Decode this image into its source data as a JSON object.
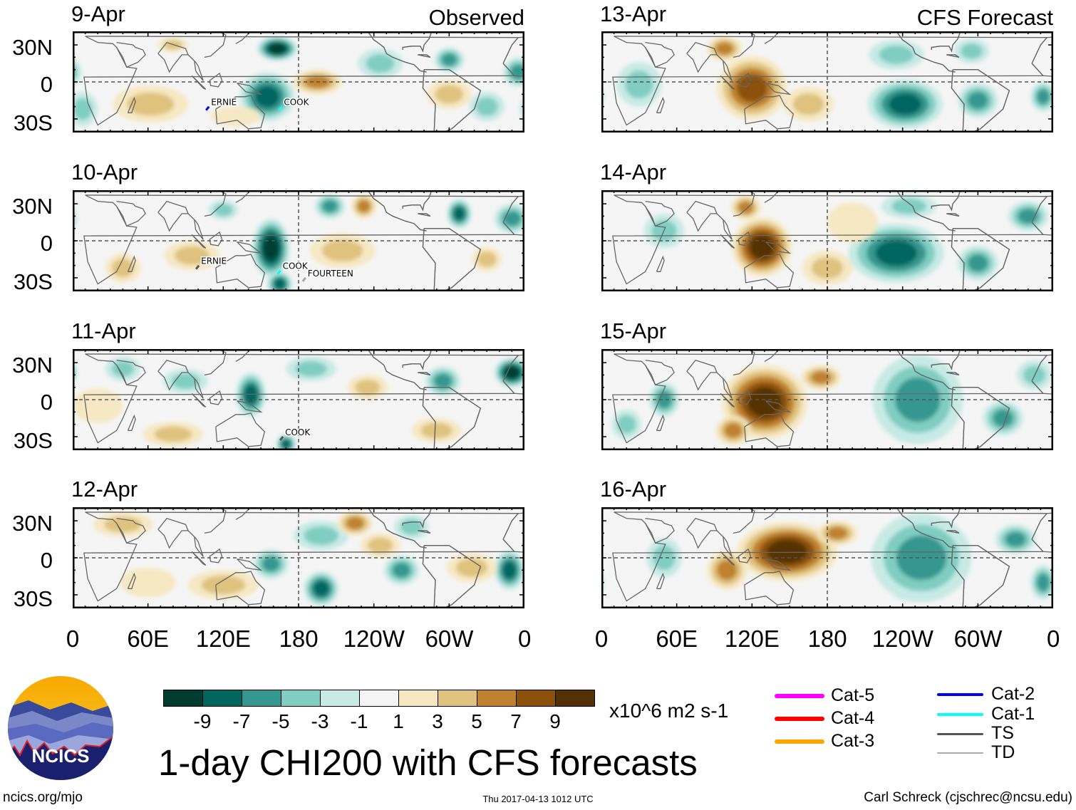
{
  "header": {
    "left_label": "Observed",
    "right_label": "CFS Forecast"
  },
  "y_ticks": [
    "30N",
    "0",
    "30S"
  ],
  "x_ticks": [
    "0",
    "60E",
    "120E",
    "180",
    "120W",
    "60W",
    "0"
  ],
  "panels": [
    {
      "date": "9-Apr",
      "source": "observed",
      "anomalies": [
        [
          155,
          -12,
          -7,
          22,
          20
        ],
        [
          163,
          27,
          -9,
          16,
          10
        ],
        [
          245,
          15,
          -3,
          18,
          12
        ],
        [
          300,
          18,
          -5,
          12,
          10
        ],
        [
          330,
          -20,
          -3,
          14,
          12
        ],
        [
          355,
          8,
          -5,
          12,
          12
        ],
        [
          8,
          -22,
          -3,
          12,
          14
        ],
        [
          195,
          0,
          5,
          20,
          10
        ],
        [
          300,
          -10,
          3,
          18,
          12
        ],
        [
          62,
          -18,
          3,
          30,
          15
        ],
        [
          130,
          -28,
          1,
          20,
          8
        ],
        [
          80,
          30,
          3,
          12,
          6
        ]
      ],
      "storms": [
        {
          "name": "ERNIE",
          "lon": 108,
          "lat": -20,
          "category": "Cat-2"
        },
        {
          "name": "COOK",
          "lon": 166,
          "lat": -20,
          "category": "Cat-1"
        }
      ]
    },
    {
      "date": "10-Apr",
      "source": "observed",
      "anomalies": [
        [
          158,
          -6,
          -9,
          15,
          24
        ],
        [
          165,
          -35,
          -7,
          10,
          10
        ],
        [
          205,
          28,
          -5,
          12,
          10
        ],
        [
          308,
          22,
          -7,
          10,
          12
        ],
        [
          350,
          18,
          -5,
          14,
          12
        ],
        [
          120,
          25,
          -3,
          12,
          8
        ],
        [
          232,
          28,
          5,
          10,
          10
        ],
        [
          215,
          -8,
          3,
          26,
          14
        ],
        [
          95,
          -12,
          3,
          22,
          12
        ],
        [
          40,
          -22,
          3,
          14,
          12
        ],
        [
          330,
          -15,
          3,
          12,
          10
        ]
      ],
      "storms": [
        {
          "name": "ERNIE",
          "lon": 100,
          "lat": -20,
          "category": "TS"
        },
        {
          "name": "COOK",
          "lon": 165,
          "lat": -24,
          "category": "Cat-1"
        },
        {
          "name": "FOURTEEN",
          "lon": 185,
          "lat": -30,
          "category": "TD"
        }
      ]
    },
    {
      "date": "11-Apr",
      "source": "observed",
      "anomalies": [
        [
          142,
          4,
          -7,
          12,
          18
        ],
        [
          350,
          22,
          -9,
          14,
          12
        ],
        [
          295,
          15,
          -5,
          14,
          12
        ],
        [
          170,
          -36,
          -7,
          8,
          8
        ],
        [
          190,
          25,
          -3,
          20,
          10
        ],
        [
          90,
          15,
          -3,
          18,
          10
        ],
        [
          40,
          25,
          -3,
          14,
          10
        ],
        [
          235,
          10,
          3,
          16,
          10
        ],
        [
          80,
          -28,
          3,
          24,
          10
        ],
        [
          290,
          -25,
          3,
          20,
          10
        ],
        [
          20,
          -5,
          1,
          20,
          14
        ]
      ],
      "storms": [
        {
          "name": "COOK",
          "lon": 167,
          "lat": -30,
          "category": "TS"
        }
      ]
    },
    {
      "date": "12-Apr",
      "source": "observed",
      "anomalies": [
        [
          198,
          -25,
          -7,
          14,
          14
        ],
        [
          348,
          -10,
          -7,
          12,
          16
        ],
        [
          262,
          -10,
          -5,
          14,
          12
        ],
        [
          158,
          -5,
          -5,
          14,
          12
        ],
        [
          198,
          18,
          -3,
          22,
          12
        ],
        [
          270,
          25,
          -3,
          14,
          10
        ],
        [
          225,
          28,
          5,
          14,
          10
        ],
        [
          40,
          27,
          3,
          24,
          10
        ],
        [
          120,
          -22,
          3,
          28,
          12
        ],
        [
          318,
          -8,
          3,
          20,
          12
        ],
        [
          245,
          10,
          3,
          16,
          10
        ],
        [
          60,
          -20,
          1,
          22,
          12
        ]
      ],
      "storms": []
    },
    {
      "date": "13-Apr",
      "source": "cfs",
      "anomalies": [
        [
          120,
          -5,
          7,
          28,
          26
        ],
        [
          98,
          27,
          5,
          14,
          10
        ],
        [
          165,
          -18,
          3,
          20,
          14
        ],
        [
          242,
          -18,
          -7,
          30,
          20
        ],
        [
          300,
          -15,
          -5,
          16,
          14
        ],
        [
          30,
          -2,
          -3,
          18,
          18
        ],
        [
          352,
          -12,
          -5,
          10,
          12
        ],
        [
          235,
          22,
          -3,
          22,
          12
        ],
        [
          295,
          25,
          -3,
          14,
          10
        ]
      ],
      "storms": []
    },
    {
      "date": "14-Apr",
      "source": "cfs",
      "anomalies": [
        [
          128,
          -5,
          9,
          24,
          24
        ],
        [
          115,
          27,
          5,
          12,
          10
        ],
        [
          180,
          -22,
          3,
          20,
          14
        ],
        [
          235,
          -10,
          -7,
          38,
          24
        ],
        [
          300,
          -18,
          -5,
          16,
          14
        ],
        [
          50,
          8,
          -3,
          16,
          14
        ],
        [
          340,
          20,
          -5,
          16,
          12
        ],
        [
          245,
          28,
          -3,
          22,
          10
        ],
        [
          200,
          15,
          1,
          20,
          16
        ]
      ],
      "storms": []
    },
    {
      "date": "15-Apr",
      "source": "cfs",
      "anomalies": [
        [
          130,
          -2,
          9,
          34,
          30
        ],
        [
          175,
          18,
          5,
          16,
          10
        ],
        [
          105,
          -25,
          5,
          14,
          12
        ],
        [
          240,
          -10,
          -9,
          14,
          24
        ],
        [
          252,
          0,
          -5,
          36,
          36
        ],
        [
          50,
          0,
          -5,
          12,
          14
        ],
        [
          320,
          -15,
          -5,
          16,
          14
        ],
        [
          20,
          -20,
          -3,
          12,
          12
        ],
        [
          345,
          20,
          -3,
          14,
          12
        ]
      ],
      "storms": []
    },
    {
      "date": "16-Apr",
      "source": "cfs",
      "anomalies": [
        [
          148,
          5,
          9,
          40,
          24
        ],
        [
          188,
          20,
          5,
          16,
          10
        ],
        [
          100,
          -10,
          5,
          16,
          16
        ],
        [
          240,
          -10,
          -9,
          14,
          24
        ],
        [
          255,
          0,
          -5,
          40,
          36
        ],
        [
          330,
          15,
          -5,
          16,
          12
        ],
        [
          352,
          -20,
          -5,
          10,
          14
        ],
        [
          50,
          0,
          -3,
          14,
          16
        ]
      ],
      "storms": []
    }
  ],
  "colorbar": {
    "colors": [
      "#003c30",
      "#01665e",
      "#35978f",
      "#80cdc1",
      "#c7eae5",
      "#f5f5f5",
      "#f6e8c3",
      "#dfc27d",
      "#bf812d",
      "#8c510a",
      "#543005"
    ],
    "labels": [
      "-9",
      "-7",
      "-5",
      "-3",
      "-1",
      "1",
      "3",
      "5",
      "7",
      "9"
    ],
    "units": "x10^6 m2 s-1"
  },
  "title": "1-day CHI200 with CFS forecasts",
  "legend": [
    {
      "label": "Cat-5",
      "color": "#ff00ff"
    },
    {
      "label": "Cat-4",
      "color": "#ff0000"
    },
    {
      "label": "Cat-3",
      "color": "#ffa500"
    },
    {
      "label": "Cat-2",
      "color": "#0000ff"
    },
    {
      "label": "Cat-1",
      "color": "#00ffff"
    },
    {
      "label": "TS",
      "color": "#555555"
    },
    {
      "label": "TD",
      "color": "#aaaaaa"
    }
  ],
  "logo": {
    "text": "NCICS"
  },
  "footer": {
    "url": "ncics.org/mjo",
    "timestamp": "Thu 2017-04-13 1012 UTC",
    "credit": "Carl Schreck (cjschrec@ncsu.edu)"
  }
}
